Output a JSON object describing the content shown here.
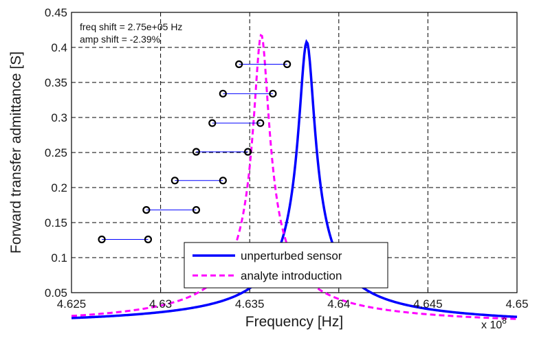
{
  "chart_data": {
    "type": "line",
    "xlabel": "Frequency [Hz]",
    "ylabel": "Forward transfer admittance [S]",
    "x_multiplier_label": "x 10",
    "x_multiplier_exponent": "8",
    "xlim": [
      4.625,
      4.65
    ],
    "ylim": [
      0.05,
      0.45
    ],
    "x_ticks": [
      "4.625",
      "4.63",
      "4.635",
      "4.64",
      "4.645",
      "4.65"
    ],
    "y_ticks": [
      "0.05",
      "0.1",
      "0.15",
      "0.2",
      "0.25",
      "0.3",
      "0.35",
      "0.4",
      "0.45"
    ],
    "grid": true,
    "annotations": [
      "freq shift = 2.75e+05 Hz",
      "amp shift = -2.39%"
    ],
    "legend_position": "bottom-center",
    "series": [
      {
        "name": "unperturbed sensor",
        "color": "#0000ff",
        "style": "solid",
        "resonance": {
          "f0": 4.6382,
          "peak": 0.408,
          "q_param": 7
        }
      },
      {
        "name": "analyte introduction",
        "color": "#ff00ff",
        "style": "dashed",
        "resonance": {
          "f0": 4.63565,
          "peak": 0.418,
          "q_param": 7.3
        }
      }
    ],
    "matched_points": [
      {
        "y": 0.126,
        "x_unperturbed": 4.6293,
        "x_analyte": 4.6267
      },
      {
        "y": 0.168,
        "x_unperturbed": 4.632,
        "x_analyte": 4.6292
      },
      {
        "y": 0.21,
        "x_unperturbed": 4.6335,
        "x_analyte": 4.6308
      },
      {
        "y": 0.251,
        "x_unperturbed": 4.6349,
        "x_analyte": 4.632
      },
      {
        "y": 0.292,
        "x_unperturbed": 4.6356,
        "x_analyte": 4.6329
      },
      {
        "y": 0.334,
        "x_unperturbed": 4.6363,
        "x_analyte": 4.6335
      },
      {
        "y": 0.376,
        "x_unperturbed": 4.6371,
        "x_analyte": 4.6344
      }
    ],
    "connector_color": "#0000ff",
    "marker_color": "#000000"
  }
}
